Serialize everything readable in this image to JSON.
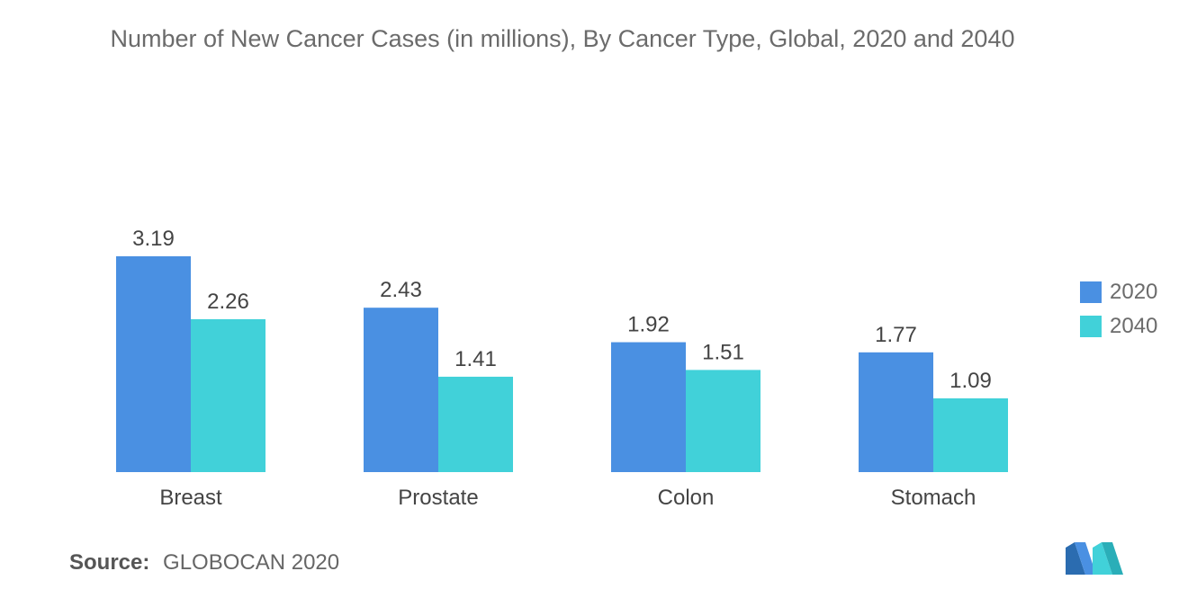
{
  "chart_data": {
    "type": "bar",
    "title": "Number of New Cancer Cases (in millions), By Cancer Type, Global, 2020 and 2040",
    "categories": [
      "Breast",
      "Prostate",
      "Colon",
      "Stomach"
    ],
    "series": [
      {
        "name": "2020",
        "values": [
          3.19,
          2.43,
          1.92,
          1.77
        ],
        "color": "#4a90e2"
      },
      {
        "name": "2040",
        "values": [
          2.26,
          1.41,
          1.51,
          1.09
        ],
        "color": "#41d1d9"
      }
    ],
    "ylim": [
      0,
      3.19
    ],
    "grid": false,
    "legend_position": "right"
  },
  "source": {
    "label": "Source:",
    "text": "GLOBOCAN 2020"
  },
  "logo": {
    "icon": "mordor-logo-icon"
  }
}
